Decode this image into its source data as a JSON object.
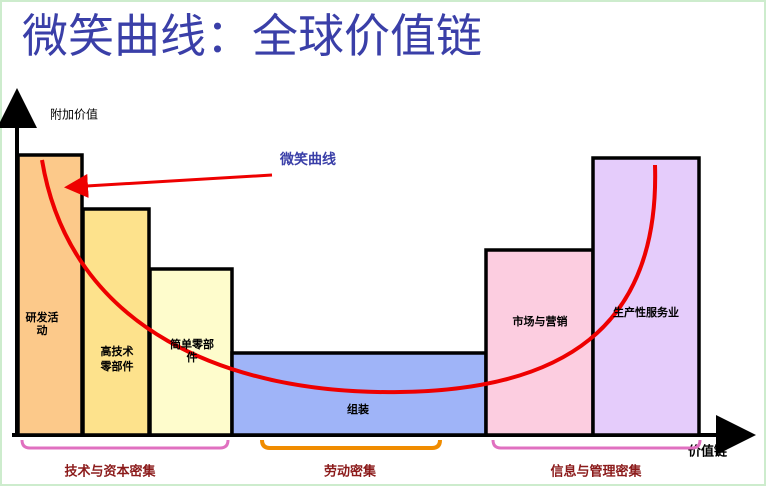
{
  "header": {
    "title": "微笑曲线：全球价值链"
  },
  "axes": {
    "y_label": "附加价值",
    "x_label": "价值链"
  },
  "curve_label": "微笑曲线",
  "bars": [
    {
      "lines": [
        "研发活",
        "动"
      ]
    },
    {
      "lines": [
        "高技术",
        "零部件"
      ]
    },
    {
      "lines": [
        "简单零部",
        "件"
      ]
    },
    {
      "lines": [
        "组装"
      ]
    },
    {
      "lines": [
        "市场与营销"
      ]
    },
    {
      "lines": [
        "生产性服务业"
      ]
    }
  ],
  "groups": [
    {
      "label": "技术与资本密集"
    },
    {
      "label": "劳动密集"
    },
    {
      "label": "信息与管理密集"
    }
  ]
}
